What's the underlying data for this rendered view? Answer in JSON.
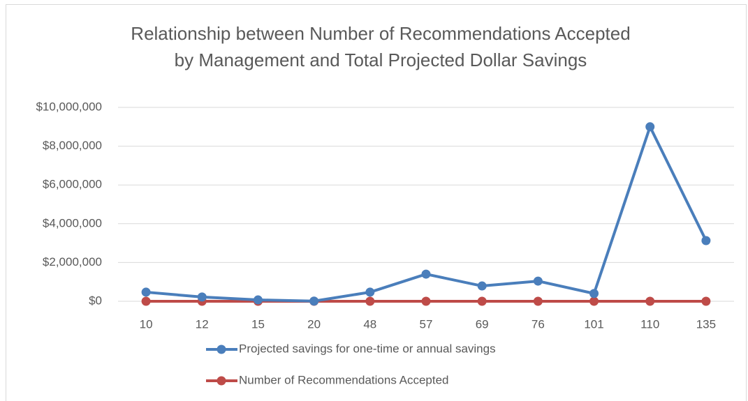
{
  "chart_data": {
    "type": "line",
    "title": [
      "Relationship between Number of Recommendations Accepted",
      "by Management and Total Projected Dollar Savings"
    ],
    "categories": [
      "10",
      "12",
      "15",
      "20",
      "48",
      "57",
      "69",
      "76",
      "101",
      "110",
      "135"
    ],
    "series": [
      {
        "name": "Projected savings for one-time or annual savings",
        "color": "#4a7ebb",
        "values": [
          470000,
          220000,
          70000,
          10000,
          470000,
          1400000,
          790000,
          1040000,
          400000,
          9000000,
          3130000
        ]
      },
      {
        "name": "Number of Recommendations Accepted",
        "color": "#be4b48",
        "values": [
          10,
          12,
          15,
          20,
          48,
          57,
          69,
          76,
          101,
          110,
          135
        ]
      }
    ],
    "ylim": [
      0,
      10000000
    ],
    "yticks": [
      {
        "value": 0,
        "label": "$0"
      },
      {
        "value": 2000000,
        "label": "$2,000,000"
      },
      {
        "value": 4000000,
        "label": "$4,000,000"
      },
      {
        "value": 6000000,
        "label": "$6,000,000"
      },
      {
        "value": 8000000,
        "label": "$8,000,000"
      },
      {
        "value": 10000000,
        "label": "$10,000,000"
      }
    ],
    "grid": true,
    "legend": "bottom"
  }
}
